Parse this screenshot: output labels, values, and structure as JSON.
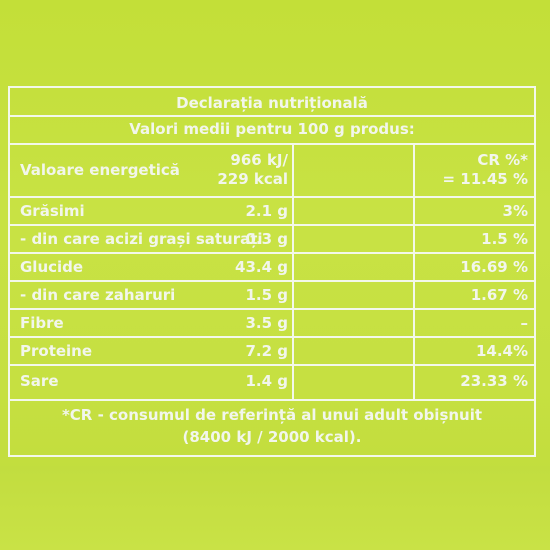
{
  "title": "Declarația nutrițională",
  "subtitle": "Valori medii pentru 100 g produs:",
  "rows": [
    {
      "label": "Valoare energetică",
      "value_line1": "966 kJ/",
      "value_line2": "229 kcal",
      "pct_line1": "CR %*",
      "pct_line2": "= 11.45 %"
    },
    {
      "label": "Grăsimi",
      "value": "2.1 g",
      "pct": "3%"
    },
    {
      "label": "- din care acizi grași saturați",
      "value": "0.3 g",
      "pct": "1.5 %"
    },
    {
      "label": "Glucide",
      "value": "43.4 g",
      "pct": "16.69 %"
    },
    {
      "label": "- din care zaharuri",
      "value": "1.5 g",
      "pct": "1.67 %"
    },
    {
      "label": "Fibre",
      "value": "3.5 g",
      "pct": "–"
    },
    {
      "label": "Proteine",
      "value": "7.2 g",
      "pct": "14.4%"
    },
    {
      "label": "Sare",
      "value": "1.4 g",
      "pct": "23.33 %"
    }
  ],
  "footnote_line1": "*CR - consumul de referință al unui adult obișnuit",
  "footnote_line2": "(8400 kJ / 2000 kcal).",
  "colors": {
    "background": "#c6e041",
    "text": "#f2f6ec"
  }
}
